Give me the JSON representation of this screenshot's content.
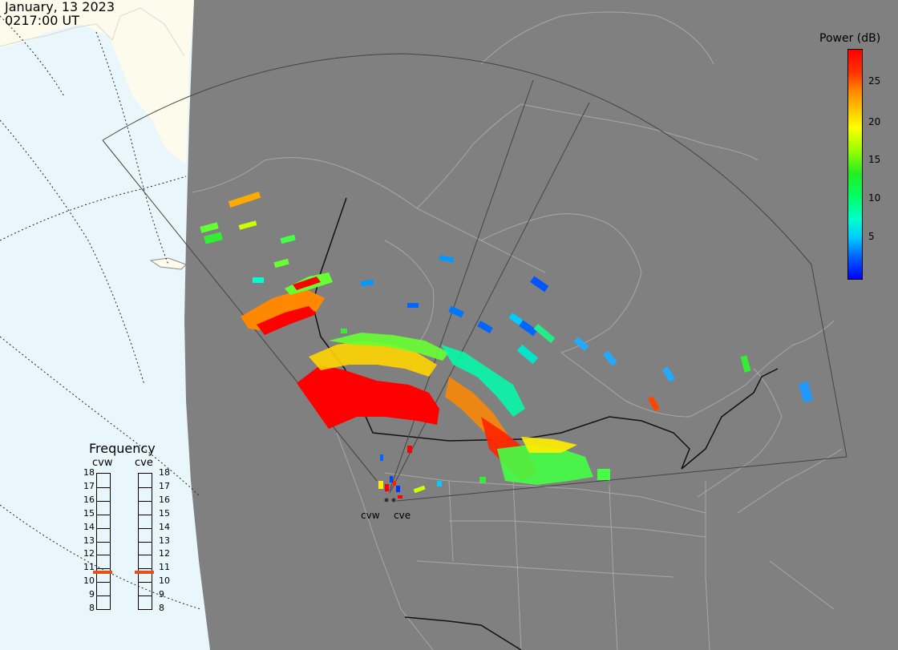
{
  "header": {
    "date": "January, 13 2023",
    "time": "0217:00 UT"
  },
  "colorbar": {
    "title": "Power (dB)",
    "ticks": [
      "25",
      "20",
      "15",
      "10",
      "5"
    ],
    "range": [
      0,
      30
    ]
  },
  "frequency": {
    "title": "Frequency",
    "radars": [
      "cvw",
      "cve"
    ],
    "scale": [
      "18",
      "17",
      "16",
      "15",
      "14",
      "13",
      "12",
      "11",
      "10",
      "9",
      "8"
    ],
    "current": [
      11,
      11
    ]
  },
  "sites": {
    "west": "cvw",
    "east": "cve"
  },
  "colors": {
    "land": "#808080",
    "ocean": "#e9f6fb",
    "arctic_land": "#fdfbec",
    "marker": "#e8501a"
  }
}
